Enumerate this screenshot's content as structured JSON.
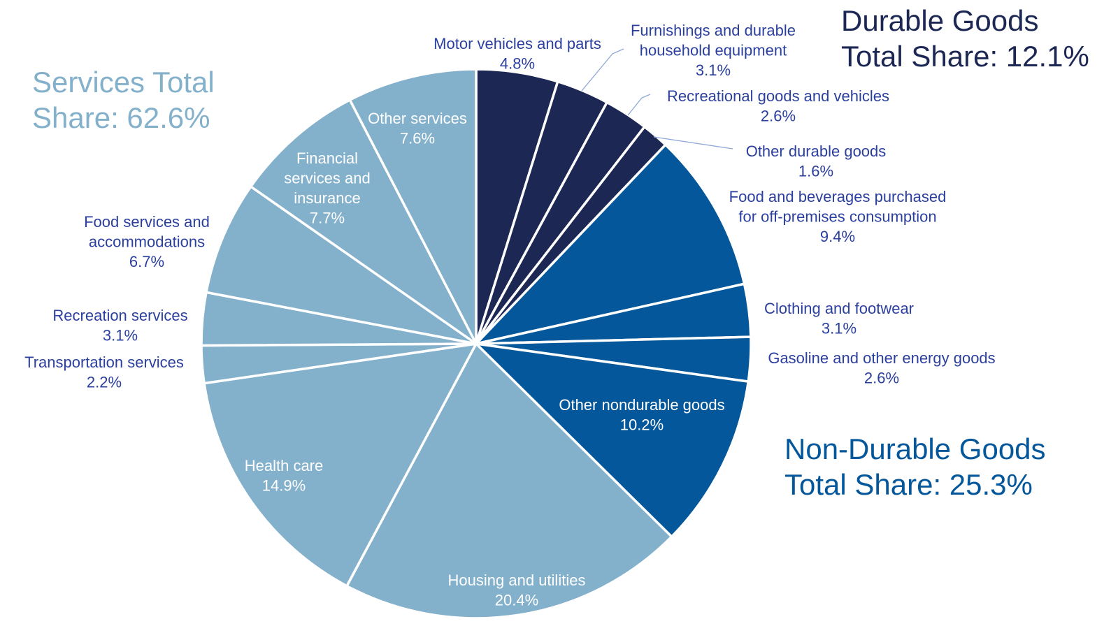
{
  "colors": {
    "durable": "#1c2754",
    "nondurable": "#04579a",
    "services": "#83b0cb",
    "label_outside": "#2b3f9e",
    "label_inside": "#ffffff"
  },
  "groups": {
    "durable": {
      "line1": "Durable Goods",
      "line2": "Total Share: 12.1%",
      "color": "#1c2754"
    },
    "nondurable": {
      "line1": "Non-Durable Goods",
      "line2": "Total Share: 25.3%",
      "color": "#04579a"
    },
    "services": {
      "line1": "Services Total",
      "line2": "Share: 62.6%",
      "color": "#83b0cb"
    }
  },
  "chart_data": {
    "type": "pie",
    "start": "12 o'clock",
    "direction": "clockwise",
    "slices": [
      {
        "label": "Motor vehicles and parts",
        "value": 4.8,
        "display": "4.8%",
        "group": "durable"
      },
      {
        "label": "Furnishings and durable household equipment",
        "value": 3.1,
        "display": "3.1%",
        "group": "durable"
      },
      {
        "label": "Recreational goods and vehicles",
        "value": 2.6,
        "display": "2.6%",
        "group": "durable"
      },
      {
        "label": "Other durable goods",
        "value": 1.6,
        "display": "1.6%",
        "group": "durable"
      },
      {
        "label": "Food and beverages purchased for off-premises consumption",
        "value": 9.4,
        "display": "9.4%",
        "group": "nondurable"
      },
      {
        "label": "Clothing and footwear",
        "value": 3.1,
        "display": "3.1%",
        "group": "nondurable"
      },
      {
        "label": "Gasoline and other energy goods",
        "value": 2.6,
        "display": "2.6%",
        "group": "nondurable"
      },
      {
        "label": "Other nondurable goods",
        "value": 10.2,
        "display": "10.2%",
        "group": "nondurable"
      },
      {
        "label": "Housing and utilities",
        "value": 20.4,
        "display": "20.4%",
        "group": "services"
      },
      {
        "label": "Health care",
        "value": 14.9,
        "display": "14.9%",
        "group": "services"
      },
      {
        "label": "Transportation services",
        "value": 2.2,
        "display": "2.2%",
        "group": "services"
      },
      {
        "label": "Recreation services",
        "value": 3.1,
        "display": "3.1%",
        "group": "services"
      },
      {
        "label": "Food services and accommodations",
        "value": 6.7,
        "display": "6.7%",
        "group": "services"
      },
      {
        "label": "Financial services and insurance",
        "value": 7.7,
        "display": "7.7%",
        "group": "services"
      },
      {
        "label": "Other services",
        "value": 7.6,
        "display": "7.6%",
        "group": "services"
      }
    ]
  }
}
